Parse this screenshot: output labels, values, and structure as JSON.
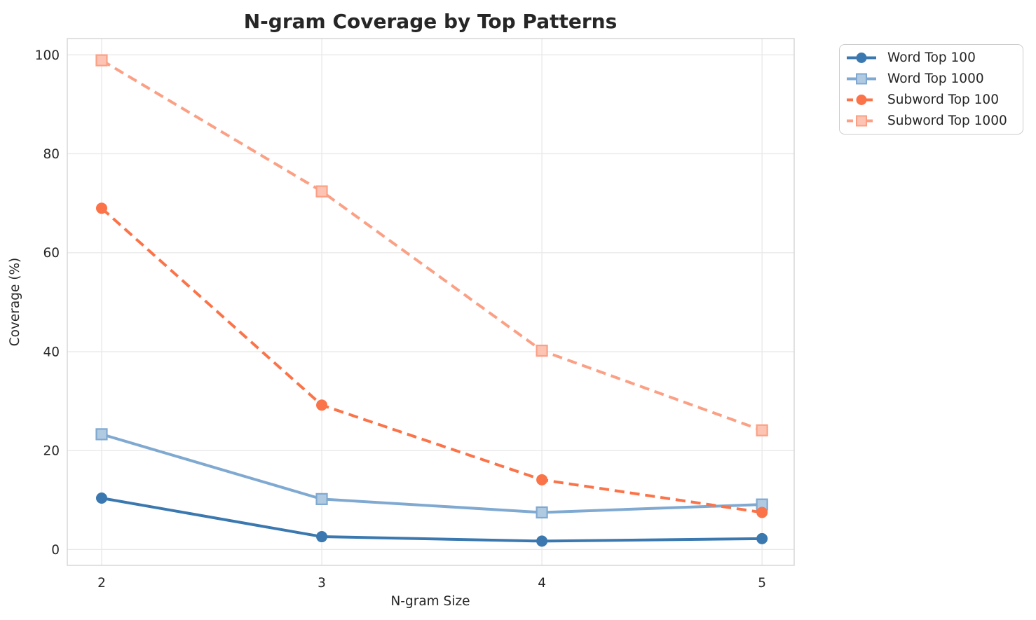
{
  "title": "N-gram Coverage by Top Patterns",
  "chart_data": {
    "type": "line",
    "title": "N-gram Coverage by Top Patterns",
    "xlabel": "N-gram Size",
    "ylabel": "Coverage (%)",
    "x": [
      2,
      3,
      4,
      5
    ],
    "xtick_labels": [
      "2",
      "3",
      "4",
      "5"
    ],
    "ytick_values": [
      0,
      20,
      40,
      60,
      80,
      100
    ],
    "ytick_labels": [
      "0",
      "20",
      "40",
      "60",
      "80",
      "100"
    ],
    "xlim": [
      1.844,
      5.146
    ],
    "ylim": [
      -3.2,
      103.3
    ],
    "grid": true,
    "legend_position": "outside-upper-right",
    "series": [
      {
        "name": "Word Top 100",
        "values": [
          10.4,
          2.6,
          1.7,
          2.2
        ],
        "color": "#3a78af",
        "line_style": "solid",
        "marker": "circle"
      },
      {
        "name": "Word Top 1000",
        "values": [
          23.3,
          10.2,
          7.5,
          9.1
        ],
        "color": "#7fa9d1",
        "line_style": "solid",
        "marker": "square"
      },
      {
        "name": "Subword Top 100",
        "values": [
          69.0,
          29.2,
          14.1,
          7.5
        ],
        "color": "#fb7348",
        "line_style": "dashed",
        "marker": "circle"
      },
      {
        "name": "Subword Top 1000",
        "values": [
          98.9,
          72.4,
          40.2,
          24.1
        ],
        "color": "#fba085",
        "line_style": "dashed",
        "marker": "square"
      }
    ]
  }
}
